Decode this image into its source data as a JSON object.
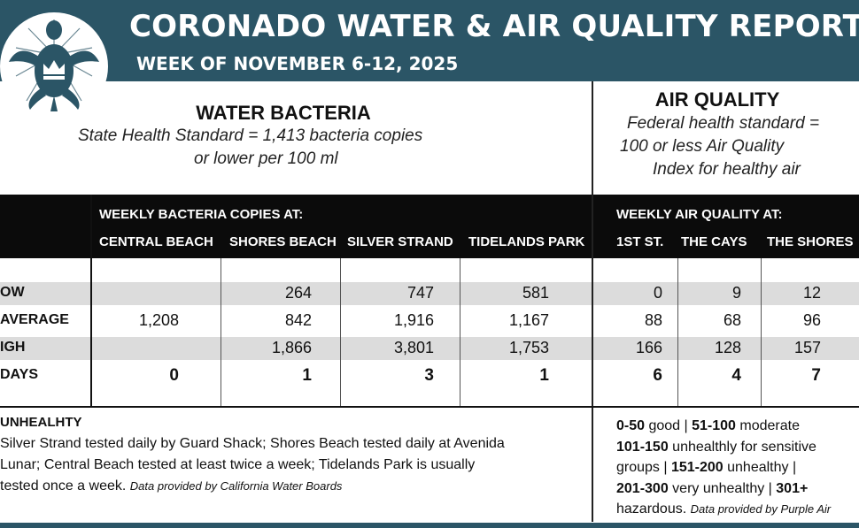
{
  "header": {
    "title": "CORONADO WATER & AIR QUALITY REPORT",
    "subtitle": "WEEK OF NOVEMBER 6-12, 2025",
    "logo_icon": "sea-turtle-crown-logo",
    "bg_color": "#2b5566"
  },
  "water": {
    "title": "WATER BACTERIA",
    "standard_line1": "State Health Standard  = 1,413 bacteria copies",
    "standard_line2": "or lower per 100 ml",
    "band_label": "WEEKLY BACTERIA COPIES AT:",
    "columns": [
      "CENTRAL BEACH",
      "SHORES BEACH",
      "SILVER STRAND",
      "TIDELANDS PARK"
    ]
  },
  "air": {
    "title": "AIR QUALITY",
    "standard_line1": "Federal health standard =",
    "standard_line2": "100 or less Air Quality",
    "standard_line3": "Index for healthy air",
    "band_label": "WEEKLY AIR QUALITY AT:",
    "columns": [
      "1ST ST.",
      "THE CAYS",
      "THE SHORES"
    ]
  },
  "rows": [
    {
      "label": "OW",
      "water": [
        "",
        "264",
        "747",
        "581"
      ],
      "air": [
        "0",
        "9",
        "12"
      ]
    },
    {
      "label": "AVERAGE",
      "water": [
        "1,208",
        "842",
        "1,916",
        "1,167"
      ],
      "air": [
        "88",
        "68",
        "96"
      ]
    },
    {
      "label": "IGH",
      "water": [
        "",
        "1,866",
        "3,801",
        "1,753"
      ],
      "air": [
        "166",
        "128",
        "157"
      ]
    },
    {
      "label": "DAYS",
      "water": [
        "0",
        "1",
        "3",
        "1"
      ],
      "air": [
        "6",
        "4",
        "7"
      ]
    }
  ],
  "footer": {
    "unhealthy_label": "UNHEALHTY",
    "water_line1": "Silver Strand tested daily by Guard Shack; Shores Beach tested daily at Avenida",
    "water_line2": "Lunar; Central Beach tested at least twice a week; Tidelands Park is usually",
    "water_line3": "tested once a week.",
    "water_credit": "Data provided by California Water Boards",
    "aqi": {
      "r1": "0-50",
      "t1": " good | ",
      "r2": "51-100",
      "t2": " moderate",
      "r3": "101-150",
      "t3": " unhealthly for sensitive",
      "t3b": "groups | ",
      "r4": "151-200",
      "t4": " unhealthy |",
      "r5": "201-300",
      "t5": " very unhealthy | ",
      "r6": "301+",
      "t6": "hazardous.",
      "credit": "Data provided by Purple Air"
    }
  }
}
